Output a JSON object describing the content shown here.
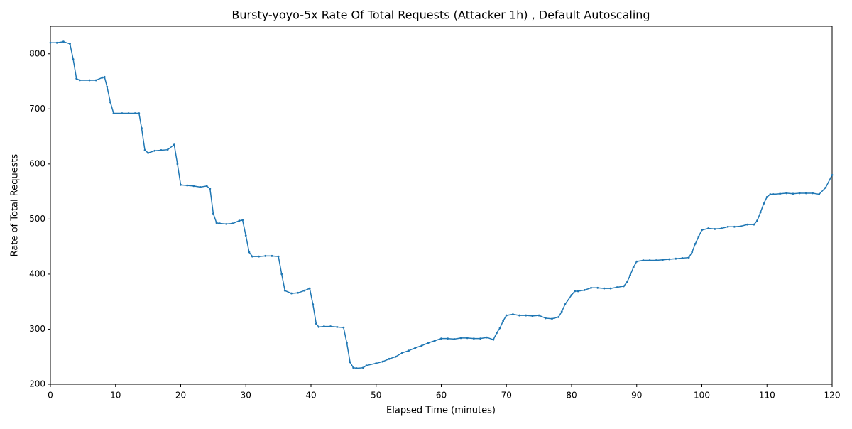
{
  "chart_data": {
    "type": "line",
    "title": "Bursty-yoyo-5x Rate Of Total Requests (Attacker 1h) , Default Autoscaling",
    "x_label": "Elapsed Time (minutes)",
    "y_label": "Rate of Total Requests",
    "xlim": [
      0,
      120
    ],
    "ylim": [
      200,
      850
    ],
    "xticks": [
      0,
      10,
      20,
      30,
      40,
      50,
      60,
      70,
      80,
      90,
      100,
      110,
      120
    ],
    "yticks": [
      200,
      300,
      400,
      500,
      600,
      700,
      800
    ],
    "grid": false,
    "series": [
      {
        "name": "Rate of Total Requests",
        "color": "#1f77b4",
        "x": [
          0,
          1,
          2,
          3,
          3.5,
          4,
          4.5,
          6,
          7,
          8,
          8.3,
          8.7,
          9.2,
          9.7,
          11,
          12,
          13,
          13.6,
          14,
          14.5,
          15,
          16,
          17,
          18,
          19,
          19.5,
          20,
          21,
          22,
          23,
          24,
          24.5,
          25,
          25.5,
          26,
          27,
          28,
          29,
          29.5,
          30,
          30.5,
          31,
          32,
          33,
          34,
          35,
          35.5,
          36,
          37,
          38,
          39,
          39.8,
          40.3,
          40.8,
          41.2,
          42,
          43,
          44,
          45,
          45.5,
          46,
          46.5,
          47,
          48,
          48.5,
          50,
          51,
          52,
          53,
          54,
          55,
          56,
          57,
          58,
          59,
          60,
          61,
          62,
          63,
          64,
          65,
          66,
          67,
          68,
          68.5,
          69,
          69.5,
          70,
          71,
          72,
          73,
          74,
          75,
          76,
          77,
          78,
          78.5,
          79,
          80,
          80.5,
          81,
          82,
          83,
          84,
          85,
          86,
          87,
          88,
          88.5,
          89,
          89.5,
          90,
          91,
          92,
          93,
          94,
          95,
          96,
          97,
          98,
          98.5,
          99,
          99.5,
          100,
          101,
          102,
          103,
          104,
          105,
          106,
          107,
          108,
          108.5,
          109,
          109.5,
          110,
          110.5,
          111,
          112,
          113,
          114,
          115,
          116,
          117,
          118,
          119,
          120
        ],
        "values": [
          820,
          820,
          822,
          818,
          790,
          755,
          752,
          752,
          752,
          757,
          758,
          740,
          712,
          692,
          692,
          692,
          692,
          692,
          665,
          625,
          620,
          624,
          625,
          626,
          635,
          600,
          562,
          561,
          560,
          558,
          560,
          555,
          510,
          493,
          492,
          491,
          492,
          497,
          498,
          470,
          440,
          432,
          432,
          433,
          433,
          432,
          400,
          370,
          365,
          366,
          370,
          374,
          345,
          310,
          304,
          305,
          305,
          304,
          303,
          275,
          240,
          230,
          229,
          230,
          234,
          238,
          241,
          246,
          250,
          257,
          261,
          266,
          270,
          275,
          279,
          283,
          283,
          282,
          284,
          284,
          283,
          283,
          285,
          281,
          293,
          302,
          315,
          325,
          327,
          325,
          325,
          324,
          325,
          320,
          319,
          322,
          332,
          345,
          362,
          369,
          369,
          371,
          375,
          375,
          374,
          374,
          376,
          378,
          385,
          398,
          412,
          423,
          425,
          425,
          425,
          426,
          427,
          428,
          429,
          430,
          440,
          455,
          468,
          480,
          483,
          482,
          483,
          486,
          486,
          487,
          490,
          490,
          497,
          512,
          528,
          540,
          545,
          545,
          546,
          547,
          546,
          547,
          547,
          547,
          545,
          557,
          580
        ]
      }
    ]
  }
}
